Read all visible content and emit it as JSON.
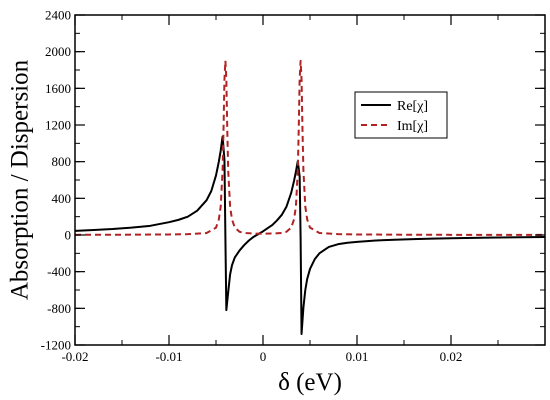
{
  "chart_data": {
    "type": "line",
    "title": "",
    "xlabel": "δ (eV)",
    "ylabel": "Absorption / Dispersion",
    "xlim": [
      -0.02,
      0.03
    ],
    "ylim": [
      -1200,
      2400
    ],
    "xticks": [
      -0.02,
      -0.01,
      0,
      0.01,
      0.02
    ],
    "xtick_labels": [
      "-0.02",
      "-0.01",
      "0",
      "0.01",
      "0.02"
    ],
    "yticks": [
      -1200,
      -800,
      -400,
      0,
      400,
      800,
      1200,
      1600,
      2000,
      2400
    ],
    "ytick_labels": [
      "-1200",
      "-800",
      "-400",
      "0",
      "400",
      "800",
      "1200",
      "1600",
      "2000",
      "2400"
    ],
    "grid": false,
    "legend_position": "right",
    "series": [
      {
        "name": "Re[χ]",
        "color": "#000000",
        "style": "solid",
        "x": [
          -0.02,
          -0.018,
          -0.016,
          -0.014,
          -0.012,
          -0.01,
          -0.009,
          -0.008,
          -0.007,
          -0.006,
          -0.0055,
          -0.005,
          -0.0047,
          -0.0045,
          -0.0043,
          -0.0041,
          -0.004,
          -0.0039,
          -0.0037,
          -0.0035,
          -0.0033,
          -0.003,
          -0.0025,
          -0.002,
          -0.0015,
          -0.001,
          0,
          0.001,
          0.0015,
          0.002,
          0.0025,
          0.003,
          0.0033,
          0.0035,
          0.0037,
          0.0039,
          0.004,
          0.0041,
          0.0043,
          0.0045,
          0.0047,
          0.005,
          0.0055,
          0.006,
          0.007,
          0.008,
          0.009,
          0.01,
          0.012,
          0.014,
          0.016,
          0.018,
          0.02,
          0.024,
          0.03
        ],
        "y": [
          45,
          55,
          65,
          80,
          100,
          140,
          165,
          200,
          265,
          380,
          480,
          650,
          800,
          920,
          1075,
          820,
          -30,
          -820,
          -620,
          -430,
          -330,
          -245,
          -170,
          -110,
          -60,
          -20,
          40,
          110,
          160,
          220,
          310,
          460,
          590,
          690,
          805,
          640,
          -20,
          -1080,
          -790,
          -600,
          -480,
          -370,
          -265,
          -200,
          -130,
          -100,
          -85,
          -75,
          -60,
          -52,
          -45,
          -40,
          -35,
          -28,
          -22
        ]
      },
      {
        "name": "Im[χ]",
        "color": "#b22222",
        "style": "dashed",
        "x": [
          -0.02,
          -0.015,
          -0.01,
          -0.008,
          -0.006,
          -0.005,
          -0.0047,
          -0.0045,
          -0.0043,
          -0.0042,
          -0.0041,
          -0.004,
          -0.0039,
          -0.0038,
          -0.0037,
          -0.0035,
          -0.0033,
          -0.003,
          -0.0025,
          -0.002,
          -0.001,
          0,
          0.001,
          0.002,
          0.0025,
          0.003,
          0.0033,
          0.0035,
          0.0037,
          0.0038,
          0.0039,
          0.004,
          0.0041,
          0.0042,
          0.0043,
          0.0045,
          0.0047,
          0.005,
          0.006,
          0.008,
          0.01,
          0.015,
          0.02,
          0.025,
          0.03
        ],
        "y": [
          2,
          3,
          6,
          9,
          22,
          80,
          170,
          310,
          700,
          1150,
          1700,
          1900,
          1700,
          1150,
          700,
          310,
          170,
          80,
          35,
          22,
          16,
          14,
          16,
          22,
          35,
          80,
          170,
          310,
          700,
          1150,
          1700,
          1900,
          1700,
          1150,
          700,
          310,
          170,
          80,
          22,
          9,
          6,
          3,
          2,
          2,
          1
        ]
      }
    ]
  }
}
